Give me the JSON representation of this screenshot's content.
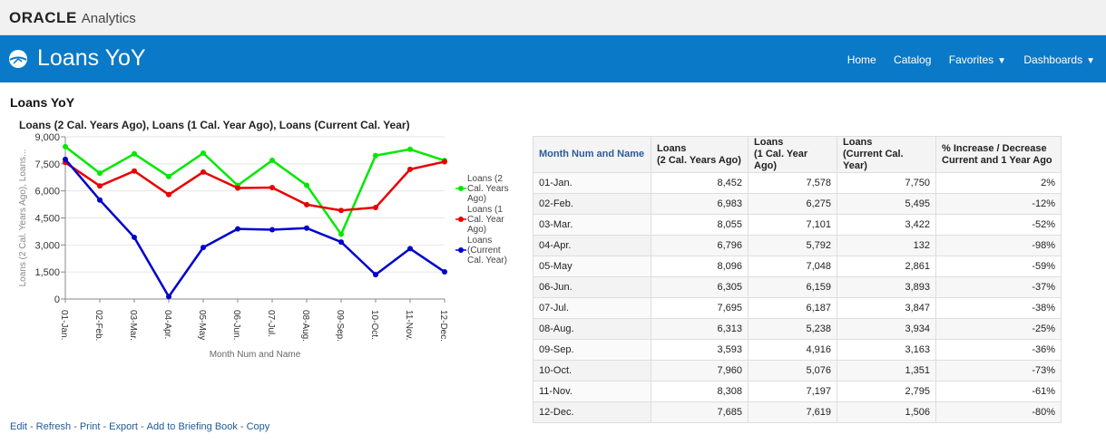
{
  "brand": {
    "oracle": "ORACLE",
    "product": "Analytics"
  },
  "header": {
    "title": "Loans YoY",
    "nav": [
      {
        "label": "Home",
        "dropdown": false
      },
      {
        "label": "Catalog",
        "dropdown": false
      },
      {
        "label": "Favorites",
        "dropdown": true
      },
      {
        "label": "Dashboards",
        "dropdown": true
      }
    ]
  },
  "section": {
    "title": "Loans YoY"
  },
  "colors": {
    "header_bg": "#0a79c7",
    "series_2y": "#00e800",
    "series_1y": "#e80000",
    "series_cur": "#0000cc"
  },
  "chart_data": {
    "type": "line",
    "title": "Loans (2 Cal. Years Ago), Loans (1 Cal. Year Ago), Loans (Current Cal. Year)",
    "xlabel": "Month Num and Name",
    "ylabel": "Loans (2 Cal. Years Ago), Loans...",
    "ylim": [
      0,
      9000
    ],
    "yticks": [
      "0",
      "1,500",
      "3,000",
      "4,500",
      "6,000",
      "7,500",
      "9,000"
    ],
    "categories": [
      "01-Jan.",
      "02-Feb.",
      "03-Mar.",
      "04-Apr.",
      "05-May",
      "06-Jun.",
      "07-Jul.",
      "08-Aug.",
      "09-Sep.",
      "10-Oct.",
      "11-Nov.",
      "12-Dec."
    ],
    "legend_position": "right",
    "series": [
      {
        "name": "Loans (2 Cal. Years Ago)",
        "legend_lines": [
          "Loans (2",
          "Cal. Years",
          "Ago)"
        ],
        "color": "#00e800",
        "values": [
          8452,
          6983,
          8055,
          6796,
          8096,
          6305,
          7695,
          6313,
          3593,
          7960,
          8308,
          7685
        ]
      },
      {
        "name": "Loans (1 Cal. Year Ago)",
        "legend_lines": [
          "Loans (1",
          "Cal. Year",
          "Ago)"
        ],
        "color": "#e80000",
        "values": [
          7578,
          6275,
          7101,
          5792,
          7048,
          6159,
          6187,
          5238,
          4916,
          5076,
          7197,
          7619
        ]
      },
      {
        "name": "Loans (Current Cal. Year)",
        "legend_lines": [
          "Loans",
          "(Current",
          "Cal. Year)"
        ],
        "color": "#0000cc",
        "values": [
          7750,
          5495,
          3422,
          132,
          2861,
          3893,
          3847,
          3934,
          3163,
          1351,
          2795,
          1506
        ]
      }
    ]
  },
  "table": {
    "headers": [
      [
        "Month Num and Name"
      ],
      [
        "Loans",
        "(2 Cal. Years Ago)"
      ],
      [
        "Loans",
        "(1 Cal. Year Ago)"
      ],
      [
        "Loans",
        "(Current Cal. Year)"
      ],
      [
        "% Increase / Decrease",
        "Current and 1 Year Ago"
      ]
    ],
    "rows": [
      [
        "01-Jan.",
        "8,452",
        "7,578",
        "7,750",
        "2%"
      ],
      [
        "02-Feb.",
        "6,983",
        "6,275",
        "5,495",
        "-12%"
      ],
      [
        "03-Mar.",
        "8,055",
        "7,101",
        "3,422",
        "-52%"
      ],
      [
        "04-Apr.",
        "6,796",
        "5,792",
        "132",
        "-98%"
      ],
      [
        "05-May",
        "8,096",
        "7,048",
        "2,861",
        "-59%"
      ],
      [
        "06-Jun.",
        "6,305",
        "6,159",
        "3,893",
        "-37%"
      ],
      [
        "07-Jul.",
        "7,695",
        "6,187",
        "3,847",
        "-38%"
      ],
      [
        "08-Aug.",
        "6,313",
        "5,238",
        "3,934",
        "-25%"
      ],
      [
        "09-Sep.",
        "3,593",
        "4,916",
        "3,163",
        "-36%"
      ],
      [
        "10-Oct.",
        "7,960",
        "5,076",
        "1,351",
        "-73%"
      ],
      [
        "11-Nov.",
        "8,308",
        "7,197",
        "2,795",
        "-61%"
      ],
      [
        "12-Dec.",
        "7,685",
        "7,619",
        "1,506",
        "-80%"
      ]
    ]
  },
  "footer": {
    "links": [
      "Edit",
      "Refresh",
      "Print",
      "Export",
      "Add to Briefing Book",
      "Copy"
    ],
    "separator": "-"
  }
}
